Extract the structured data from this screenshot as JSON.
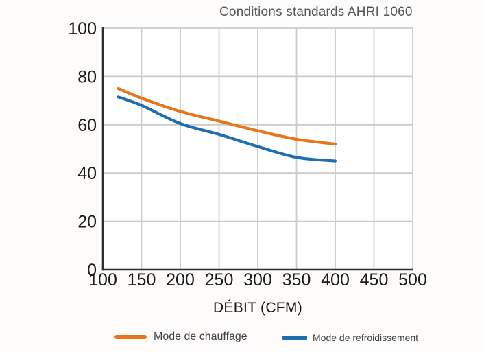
{
  "chart_data": {
    "type": "line",
    "title": "Conditions standards AHRI 1060",
    "xlabel": "DÉBIT (CFM)",
    "ylabel": "",
    "x": [
      120,
      150,
      200,
      250,
      300,
      350,
      400
    ],
    "series": [
      {
        "name": "Mode de chauffage",
        "color": "#e8751a",
        "values": [
          75,
          71,
          65.5,
          61.5,
          57.5,
          54,
          52
        ]
      },
      {
        "name": "Mode de refroidissement",
        "color": "#1e6fb2",
        "values": [
          71.5,
          68,
          60.5,
          56,
          51,
          46.5,
          45
        ]
      }
    ],
    "xlim": [
      100,
      500
    ],
    "ylim": [
      0,
      100
    ],
    "x_ticks": [
      100,
      150,
      200,
      250,
      300,
      350,
      400,
      450,
      500
    ],
    "y_ticks": [
      0,
      20,
      40,
      60,
      80,
      100
    ],
    "grid": true,
    "legend_position": "bottom"
  },
  "colors": {
    "background": "#fdfcfa",
    "plot_background": "#ffffff",
    "grid": "#cbcbcb",
    "axis": "#2e2e2e",
    "tick_text": "#1a1a1a"
  }
}
